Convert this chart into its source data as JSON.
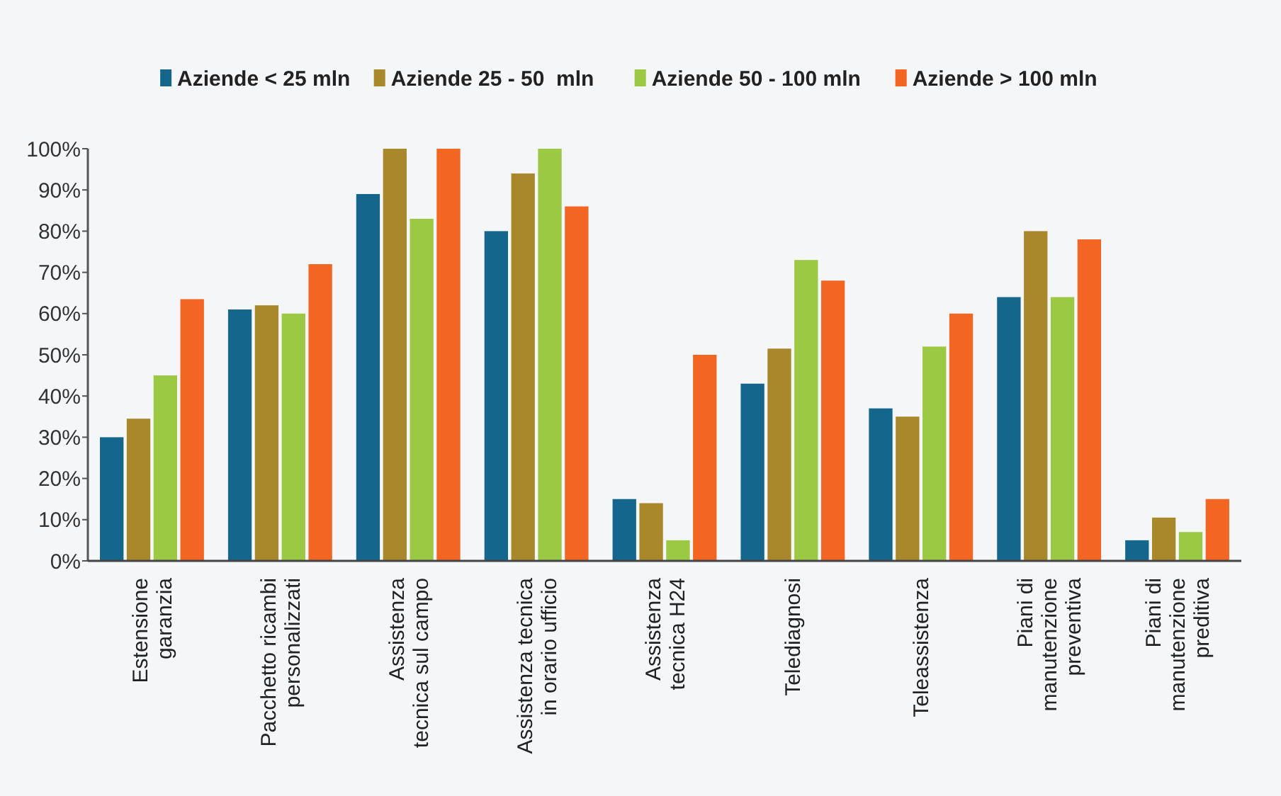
{
  "chart_data": {
    "type": "bar",
    "categories": [
      "Estensione\ngaranzia",
      "Pacchetto ricambi\npersonalizzati",
      "Assistenza\ntecnica sul campo",
      "Assistenza tecnica\nin orario ufficio",
      "Assistenza\ntecnica H24",
      "Telediagnosi",
      "Teleassistenza",
      "Piani di\nmanutenzione\npreventiva",
      "Piani di\nmanutenzione\npreditiva"
    ],
    "series": [
      {
        "name": "Aziende < 25 mln",
        "color": "#15668c",
        "values": [
          30,
          61,
          89,
          80,
          15,
          43,
          37,
          64,
          5
        ]
      },
      {
        "name": "Aziende 25 - 50  mln",
        "color": "#a8882a",
        "values": [
          34.5,
          62,
          100,
          94,
          14,
          51.5,
          35,
          80,
          10.5
        ]
      },
      {
        "name": "Aziende 50 - 100 mln",
        "color": "#9bc943",
        "values": [
          45,
          60,
          83,
          100,
          5,
          73,
          52,
          64,
          7
        ]
      },
      {
        "name": "Aziende > 100 mln",
        "color": "#f26522",
        "values": [
          63.5,
          72,
          100,
          86,
          50,
          68,
          60,
          78,
          15
        ]
      }
    ],
    "ylim": [
      0,
      100
    ],
    "yticks": [
      {
        "value": 0,
        "label": "0%"
      },
      {
        "value": 10,
        "label": "10%"
      },
      {
        "value": 20,
        "label": "20%"
      },
      {
        "value": 30,
        "label": "30%"
      },
      {
        "value": 40,
        "label": "40%"
      },
      {
        "value": 50,
        "label": "50%"
      },
      {
        "value": 60,
        "label": "60%"
      },
      {
        "value": 70,
        "label": "70%"
      },
      {
        "value": 80,
        "label": "80%"
      },
      {
        "value": 90,
        "label": "90%"
      },
      {
        "value": 100,
        "label": "100%"
      }
    ],
    "grid": false,
    "legend": "top"
  }
}
